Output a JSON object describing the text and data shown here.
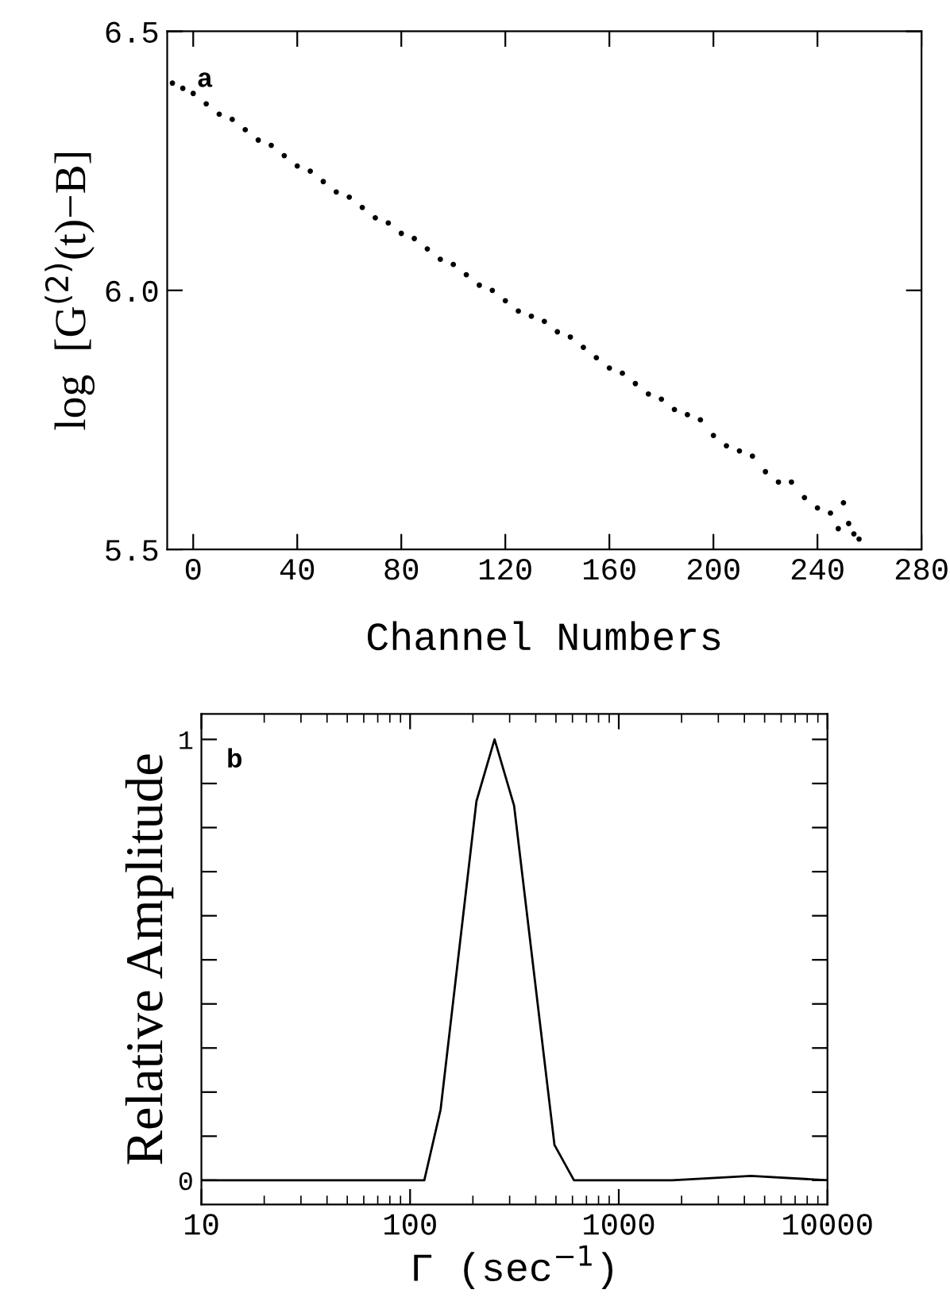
{
  "chart_data": [
    {
      "type": "scatter",
      "xlabel": "Channel Numbers",
      "ylabel": "log  [G$^{(2)}$(t)−B]",
      "annotations": [
        "a"
      ],
      "marker": "circle",
      "grid": false,
      "xlim": [
        -10,
        280
      ],
      "ylim": [
        5.5,
        6.5
      ],
      "xticks": [
        0,
        40,
        80,
        120,
        160,
        200,
        240,
        280
      ],
      "yticks": [
        5.5,
        {
          "value": 6.0,
          "label": "6.0"
        },
        6.5
      ],
      "series": [
        {
          "color": "#000000",
          "x": [
            -8,
            -4,
            0,
            5,
            10,
            15,
            20,
            25,
            30,
            35,
            40,
            45,
            50,
            55,
            60,
            65,
            70,
            75,
            80,
            85,
            90,
            95,
            100,
            105,
            110,
            115,
            120,
            125,
            130,
            135,
            140,
            145,
            150,
            155,
            160,
            165,
            170,
            175,
            180,
            185,
            190,
            195,
            200,
            205,
            210,
            215,
            220,
            225,
            230,
            235,
            240,
            245,
            248,
            250,
            252,
            254,
            256
          ],
          "values": [
            6.4,
            6.39,
            6.38,
            6.36,
            6.34,
            6.33,
            6.31,
            6.29,
            6.28,
            6.26,
            6.24,
            6.23,
            6.21,
            6.19,
            6.18,
            6.16,
            6.14,
            6.13,
            6.11,
            6.1,
            6.08,
            6.06,
            6.05,
            6.03,
            6.01,
            6.0,
            5.98,
            5.96,
            5.95,
            5.94,
            5.92,
            5.91,
            5.89,
            5.87,
            5.85,
            5.84,
            5.82,
            5.8,
            5.79,
            5.77,
            5.76,
            5.75,
            5.72,
            5.7,
            5.69,
            5.68,
            5.65,
            5.63,
            5.63,
            5.6,
            5.58,
            5.57,
            5.54,
            5.59,
            5.55,
            5.53,
            5.52
          ]
        }
      ]
    },
    {
      "type": "line",
      "xlabel": "Γ (sec$^{−1}$)",
      "ylabel": "Relative Amplitude",
      "annotations": [
        "b"
      ],
      "log": "x",
      "grid": false,
      "xlim": [
        10,
        10000
      ],
      "ylim": [
        -0.055,
        1.058
      ],
      "xticks": [
        10,
        100,
        1000,
        10000
      ],
      "yticks": [
        0,
        {
          "value": 0.1,
          "label": null
        },
        {
          "value": 0.2,
          "label": null
        },
        {
          "value": 0.3,
          "label": null
        },
        {
          "value": 0.4,
          "label": null
        },
        {
          "value": 0.5,
          "label": null
        },
        {
          "value": 0.6,
          "label": null
        },
        {
          "value": 0.7,
          "label": null
        },
        {
          "value": 0.8,
          "label": null
        },
        {
          "value": 0.9,
          "label": null
        },
        1
      ],
      "series": [
        {
          "color": "#000000",
          "x": [
            10,
            117,
            140,
            208,
            254,
            315,
            492,
            610,
            1800,
            4300,
            10000
          ],
          "values": [
            0,
            0,
            0.16,
            0.86,
            1.0,
            0.85,
            0.08,
            0,
            0,
            0.01,
            0
          ]
        }
      ]
    }
  ]
}
